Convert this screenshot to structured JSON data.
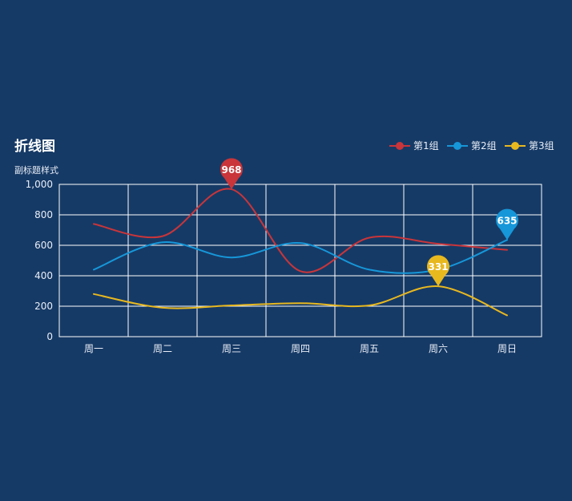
{
  "chart_data": {
    "type": "line",
    "title": "折线图",
    "subtitle": "副标题样式",
    "categories": [
      "周一",
      "周二",
      "周三",
      "周四",
      "周五",
      "周六",
      "周日"
    ],
    "series": [
      {
        "name": "第1组",
        "color": "#c9353a",
        "values": [
          740,
          660,
          968,
          430,
          650,
          610,
          570
        ],
        "max_value": "968",
        "max_index": 2
      },
      {
        "name": "第2组",
        "color": "#1697d9",
        "values": [
          440,
          620,
          520,
          615,
          440,
          440,
          635
        ],
        "max_value": "635",
        "max_index": 6
      },
      {
        "name": "第3组",
        "color": "#e8b81f",
        "values": [
          280,
          190,
          205,
          220,
          205,
          331,
          140
        ],
        "max_value": "331",
        "max_index": 5
      }
    ],
    "yTicks": [
      "0",
      "200",
      "400",
      "600",
      "800",
      "1,000"
    ],
    "ylim": [
      0,
      1000
    ],
    "grid": true,
    "legend_position": "top-right",
    "smooth": true
  }
}
